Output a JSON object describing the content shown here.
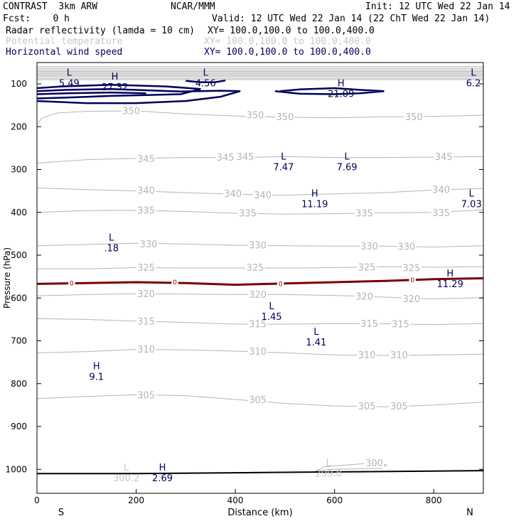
{
  "header": {
    "model": "CONTRAST  3km ARW",
    "org": "NCAR/MMM",
    "init": "Init: 12 UTC Wed 22 Jan 14",
    "fcst": "Fcst:    0 h",
    "valid": "Valid: 12 UTC Wed 22 Jan 14 (22 ChT Wed 22 Jan 14)",
    "fields": [
      {
        "name": "Radar reflectivity (lamda = 10 cm)",
        "xy": "XY= 100.0,100.0 to 100.0,400.0",
        "color": "#000000"
      },
      {
        "name": "Potential temperature",
        "xy": "XY= 100.0,100.0 to 100.0,400.0",
        "color": "#c8c8c8"
      },
      {
        "name": "Horizontal wind speed",
        "xy": "XY= 100.0,100.0 to 100.0,400.0",
        "color": "#00005a"
      }
    ]
  },
  "chart_data": {
    "type": "contour cross-section",
    "xlabel": "Distance (km)",
    "ylabel": "Pressure (hPa)",
    "xlim": [
      0,
      900
    ],
    "ylim": [
      1045,
      55
    ],
    "x_ticks": [
      0,
      200,
      400,
      600,
      800
    ],
    "y_ticks": [
      100,
      200,
      300,
      400,
      500,
      600,
      700,
      800,
      900,
      1000
    ],
    "end_labels": {
      "left": "S",
      "right": "N"
    },
    "colors": {
      "theta": "#b4b4b4",
      "wind": "#00005a",
      "zero_contour": "#7a0000",
      "ground": "#000000"
    },
    "theta_contours": [
      {
        "value": "350",
        "points": [
          [
            0,
            195
          ],
          [
            10,
            180
          ],
          [
            40,
            168
          ],
          [
            100,
            164
          ],
          [
            200,
            163
          ],
          [
            300,
            170
          ],
          [
            400,
            175
          ],
          [
            500,
            178
          ],
          [
            600,
            179
          ],
          [
            700,
            177
          ],
          [
            800,
            176
          ],
          [
            900,
            173
          ]
        ],
        "labels": [
          [
            190,
            163
          ],
          [
            440,
            173
          ],
          [
            500,
            177
          ],
          [
            760,
            177
          ]
        ]
      },
      {
        "value": "345",
        "points": [
          [
            0,
            285
          ],
          [
            100,
            277
          ],
          [
            200,
            274
          ],
          [
            300,
            272
          ],
          [
            400,
            272
          ],
          [
            500,
            270
          ],
          [
            600,
            272
          ],
          [
            700,
            272
          ],
          [
            800,
            271
          ],
          [
            900,
            270
          ]
        ],
        "labels": [
          [
            220,
            275
          ],
          [
            380,
            272
          ],
          [
            420,
            270
          ],
          [
            820,
            270
          ]
        ]
      },
      {
        "value": "340",
        "points": [
          [
            0,
            343
          ],
          [
            100,
            347
          ],
          [
            200,
            350
          ],
          [
            300,
            354
          ],
          [
            400,
            358
          ],
          [
            500,
            360
          ],
          [
            600,
            357
          ],
          [
            700,
            354
          ],
          [
            800,
            348
          ],
          [
            900,
            344
          ]
        ],
        "labels": [
          [
            220,
            349
          ],
          [
            395,
            356
          ],
          [
            455,
            360
          ],
          [
            815,
            347
          ]
        ]
      },
      {
        "value": "335",
        "points": [
          [
            0,
            400
          ],
          [
            100,
            396
          ],
          [
            200,
            395
          ],
          [
            300,
            398
          ],
          [
            400,
            402
          ],
          [
            500,
            404
          ],
          [
            600,
            403
          ],
          [
            700,
            401
          ],
          [
            800,
            400
          ],
          [
            900,
            394
          ]
        ],
        "labels": [
          [
            220,
            395
          ],
          [
            425,
            402
          ],
          [
            660,
            402
          ],
          [
            815,
            401
          ]
        ]
      },
      {
        "value": "330",
        "points": [
          [
            0,
            478
          ],
          [
            100,
            475
          ],
          [
            200,
            472
          ],
          [
            300,
            474
          ],
          [
            400,
            477
          ],
          [
            500,
            478
          ],
          [
            600,
            479
          ],
          [
            700,
            479
          ],
          [
            800,
            481
          ],
          [
            900,
            478
          ]
        ],
        "labels": [
          [
            225,
            474
          ],
          [
            445,
            477
          ],
          [
            670,
            479
          ],
          [
            745,
            480
          ]
        ]
      },
      {
        "value": "325",
        "points": [
          [
            0,
            532
          ],
          [
            100,
            532
          ],
          [
            200,
            529
          ],
          [
            300,
            530
          ],
          [
            400,
            530
          ],
          [
            500,
            530
          ],
          [
            600,
            529
          ],
          [
            700,
            527
          ],
          [
            800,
            528
          ],
          [
            900,
            527
          ]
        ],
        "labels": [
          [
            220,
            529
          ],
          [
            440,
            529
          ],
          [
            665,
            528
          ],
          [
            755,
            530
          ]
        ]
      },
      {
        "value": "320",
        "points": [
          [
            0,
            595
          ],
          [
            100,
            592
          ],
          [
            200,
            590
          ],
          [
            300,
            591
          ],
          [
            400,
            592
          ],
          [
            500,
            592
          ],
          [
            600,
            594
          ],
          [
            700,
            598
          ],
          [
            800,
            602
          ],
          [
            900,
            599
          ]
        ],
        "labels": [
          [
            220,
            590
          ],
          [
            445,
            592
          ],
          [
            660,
            596
          ],
          [
            755,
            602
          ]
        ]
      },
      {
        "value": "315",
        "points": [
          [
            0,
            648
          ],
          [
            100,
            650
          ],
          [
            200,
            654
          ],
          [
            300,
            657
          ],
          [
            400,
            661
          ],
          [
            500,
            661
          ],
          [
            600,
            660
          ],
          [
            700,
            660
          ],
          [
            800,
            662
          ],
          [
            900,
            660
          ]
        ],
        "labels": [
          [
            220,
            654
          ],
          [
            445,
            661
          ],
          [
            670,
            660
          ],
          [
            733,
            661
          ]
        ]
      },
      {
        "value": "310",
        "points": [
          [
            0,
            728
          ],
          [
            100,
            725
          ],
          [
            200,
            720
          ],
          [
            300,
            721
          ],
          [
            400,
            724
          ],
          [
            500,
            728
          ],
          [
            600,
            733
          ],
          [
            700,
            734
          ],
          [
            800,
            733
          ],
          [
            900,
            731
          ]
        ],
        "labels": [
          [
            220,
            720
          ],
          [
            445,
            725
          ],
          [
            665,
            733
          ],
          [
            730,
            733
          ]
        ]
      },
      {
        "value": "305",
        "points": [
          [
            0,
            835
          ],
          [
            100,
            830
          ],
          [
            200,
            826
          ],
          [
            300,
            828
          ],
          [
            400,
            837
          ],
          [
            500,
            846
          ],
          [
            600,
            852
          ],
          [
            700,
            854
          ],
          [
            800,
            850
          ],
          [
            900,
            843
          ]
        ],
        "labels": [
          [
            220,
            827
          ],
          [
            445,
            838
          ],
          [
            665,
            853
          ],
          [
            730,
            853
          ]
        ]
      },
      {
        "value": "300",
        "points": [
          [
            560,
            1005
          ],
          [
            580,
            994
          ],
          [
            680,
            985
          ],
          [
            705,
            990
          ],
          [
            695,
            998
          ],
          [
            590,
            1000
          ],
          [
            560,
            1005
          ]
        ],
        "labels": [
          [
            680,
            985
          ]
        ]
      }
    ],
    "zero_contour": {
      "value": "0",
      "points": [
        [
          0,
          567
        ],
        [
          100,
          565
        ],
        [
          200,
          563
        ],
        [
          300,
          565
        ],
        [
          400,
          569
        ],
        [
          500,
          566
        ],
        [
          600,
          563
        ],
        [
          700,
          560
        ],
        [
          800,
          556
        ],
        [
          900,
          554
        ]
      ],
      "labels": [
        [
          70,
          565
        ],
        [
          278,
          563
        ],
        [
          491,
          567
        ],
        [
          757,
          558
        ]
      ]
    },
    "ground": {
      "points": [
        [
          0,
          1010
        ],
        [
          200,
          1010
        ],
        [
          400,
          1008
        ],
        [
          600,
          1006
        ],
        [
          800,
          1004
        ],
        [
          900,
          1003
        ]
      ]
    },
    "top_stack": [
      60,
      64,
      68,
      71,
      74,
      77,
      80,
      83,
      87,
      90
    ],
    "wind_contours": [
      [
        [
          0,
          110
        ],
        [
          50,
          106
        ],
        [
          150,
          102
        ],
        [
          260,
          106
        ],
        [
          330,
          112
        ],
        [
          290,
          124
        ],
        [
          220,
          126
        ],
        [
          150,
          128
        ],
        [
          60,
          132
        ],
        [
          0,
          134
        ]
      ],
      [
        [
          0,
          117
        ],
        [
          60,
          114
        ],
        [
          150,
          112
        ],
        [
          220,
          115
        ],
        [
          290,
          118
        ],
        [
          370,
          116
        ],
        [
          410,
          117
        ],
        [
          370,
          130
        ],
        [
          300,
          140
        ],
        [
          200,
          145
        ],
        [
          100,
          145
        ],
        [
          0,
          140
        ]
      ],
      [
        [
          0,
          124
        ],
        [
          60,
          122
        ],
        [
          150,
          120
        ],
        [
          220,
          122
        ]
      ],
      [
        [
          300,
          93
        ],
        [
          330,
          96
        ],
        [
          360,
          96
        ],
        [
          380,
          92
        ]
      ],
      [
        [
          490,
          117
        ],
        [
          530,
          113
        ],
        [
          600,
          110
        ],
        [
          650,
          114
        ],
        [
          700,
          117
        ],
        [
          650,
          122
        ],
        [
          600,
          124
        ],
        [
          530,
          123
        ],
        [
          480,
          117
        ]
      ]
    ],
    "extrema": [
      {
        "kind": "L",
        "value": "5.49",
        "x": 65,
        "p": 91,
        "color": "#00005a"
      },
      {
        "kind": "H",
        "value": "27.32",
        "x": 157,
        "p": 100,
        "color": "#00005a"
      },
      {
        "kind": "L",
        "value": "4.56",
        "x": 340,
        "p": 91,
        "color": "#00005a"
      },
      {
        "kind": "L",
        "value": "6.2",
        "x": 880,
        "p": 91,
        "color": "#00005a"
      },
      {
        "kind": "H",
        "value": "21.09",
        "x": 613,
        "p": 116,
        "color": "#00005a"
      },
      {
        "kind": "L",
        "value": "7.47",
        "x": 497,
        "p": 287,
        "color": "#00005a"
      },
      {
        "kind": "L",
        "value": "7.69",
        "x": 625,
        "p": 287,
        "color": "#00005a"
      },
      {
        "kind": "H",
        "value": "11.19",
        "x": 560,
        "p": 373,
        "color": "#00005a"
      },
      {
        "kind": "L",
        "value": "7.03",
        "x": 876,
        "p": 373,
        "color": "#00005a"
      },
      {
        "kind": "L",
        "value": ".18",
        "x": 150,
        "p": 476,
        "color": "#00005a"
      },
      {
        "kind": "H",
        "value": "11.29",
        "x": 833,
        "p": 560,
        "color": "#00005a"
      },
      {
        "kind": "L",
        "value": "1.45",
        "x": 473,
        "p": 636,
        "color": "#00005a"
      },
      {
        "kind": "L",
        "value": "1.41",
        "x": 563,
        "p": 696,
        "color": "#00005a"
      },
      {
        "kind": "H",
        "value": "9.1",
        "x": 120,
        "p": 776,
        "color": "#00005a"
      },
      {
        "kind": "L",
        "value": "300.2",
        "x": 180,
        "p": 1013,
        "color": "#c8c8c8"
      },
      {
        "kind": "H",
        "value": "2.69",
        "x": 253,
        "p": 1013,
        "color": "#00005a"
      },
      {
        "kind": "L",
        "value": "299.8",
        "x": 588,
        "p": 1002,
        "color": "#c8c8c8"
      }
    ]
  }
}
